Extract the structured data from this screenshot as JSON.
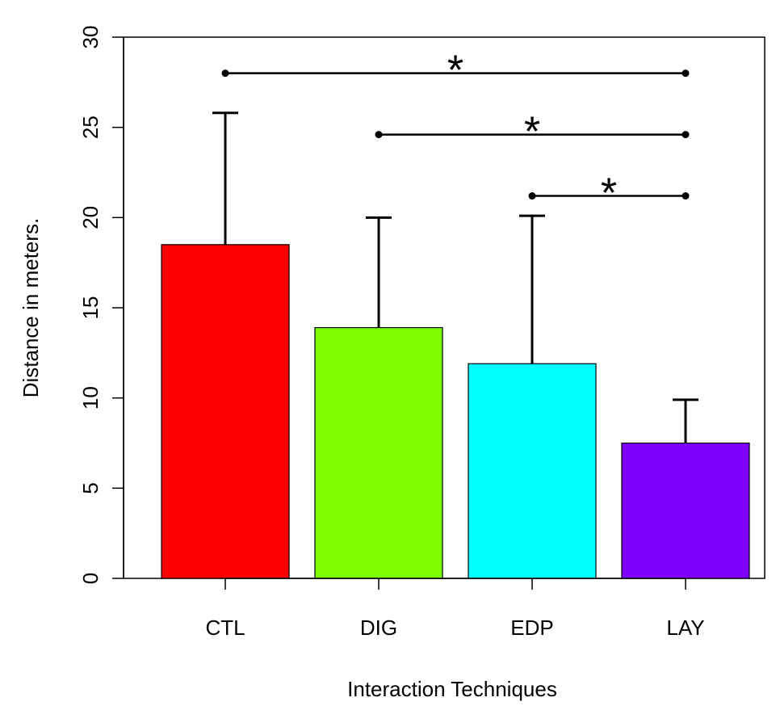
{
  "chart_data": {
    "type": "bar",
    "title": "",
    "xlabel": "Interaction Techniques",
    "ylabel": "Distance in meters.",
    "categories": [
      "CTL",
      "DIG",
      "EDP",
      "LAY"
    ],
    "values": [
      18.5,
      13.9,
      11.9,
      7.5
    ],
    "error_upper": [
      25.8,
      20.0,
      20.1,
      9.9
    ],
    "colors": [
      "#FF0000",
      "#80FF00",
      "#00FFFF",
      "#8000FF"
    ],
    "ylim": [
      0,
      30
    ],
    "yticks": [
      "0",
      "5",
      "10",
      "15",
      "20",
      "25",
      "30"
    ],
    "grid": false,
    "significance": [
      {
        "from": "CTL",
        "to": "LAY",
        "y": 28.0,
        "label": "*"
      },
      {
        "from": "DIG",
        "to": "LAY",
        "y": 24.6,
        "label": "*"
      },
      {
        "from": "EDP",
        "to": "LAY",
        "y": 21.2,
        "label": "*"
      }
    ]
  }
}
